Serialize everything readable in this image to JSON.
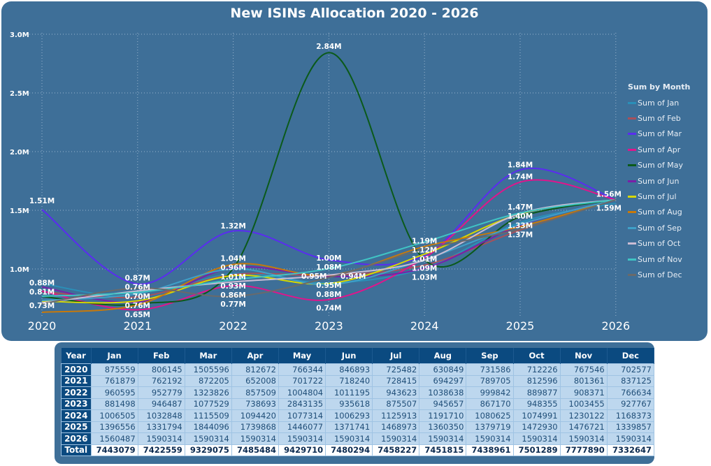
{
  "chart_data": {
    "type": "line",
    "title": "New ISINs Allocation 2020 - 2026",
    "x": [
      2020,
      2021,
      2022,
      2023,
      2024,
      2025,
      2026
    ],
    "y_ticks": [
      "1.0M",
      "1.5M",
      "2.0M",
      "2.5M",
      "3.0M"
    ],
    "ylim": [
      600000,
      3000000
    ],
    "grid": true,
    "legend": {
      "title": "Sum by Month",
      "placement": "right"
    },
    "series": [
      {
        "name": "Sum of Jan",
        "color": "#2a8fb8",
        "values": [
          875559,
          761879,
          960595,
          881498,
          1006505,
          1396556,
          1560487
        ]
      },
      {
        "name": "Sum of Feb",
        "color": "#a8505a",
        "values": [
          806145,
          762192,
          952779,
          946487,
          1032848,
          1331794,
          1590314
        ]
      },
      {
        "name": "Sum of Mar",
        "color": "#5a2cf0",
        "values": [
          1505596,
          872205,
          1323826,
          1077529,
          1115509,
          1844096,
          1590314
        ]
      },
      {
        "name": "Sum of Apr",
        "color": "#e0158c",
        "values": [
          812672,
          652008,
          857509,
          738693,
          1094420,
          1739868,
          1590314
        ]
      },
      {
        "name": "Sum of May",
        "color": "#0b5a1a",
        "values": [
          766344,
          701722,
          1004804,
          2843135,
          1077314,
          1446077,
          1590314
        ]
      },
      {
        "name": "Sum of Jun",
        "color": "#7a1fa8",
        "values": [
          846893,
          718240,
          1011195,
          935618,
          1006293,
          1371741,
          1590314
        ]
      },
      {
        "name": "Sum of Jul",
        "color": "#d8d800",
        "values": [
          725482,
          728415,
          943623,
          875507,
          1125913,
          1468973,
          1590314
        ]
      },
      {
        "name": "Sum of Aug",
        "color": "#c8790a",
        "values": [
          630849,
          694297,
          1038638,
          945657,
          1191710,
          1360350,
          1590314
        ]
      },
      {
        "name": "Sum of Sep",
        "color": "#3fa0c8",
        "values": [
          731586,
          789705,
          999842,
          867170,
          1080625,
          1379719,
          1590314
        ]
      },
      {
        "name": "Sum of Oct",
        "color": "#cbbcd4",
        "values": [
          712226,
          812596,
          889877,
          948355,
          1074991,
          1472930,
          1590314
        ]
      },
      {
        "name": "Sum of Nov",
        "color": "#40c4c4",
        "values": [
          767546,
          801361,
          908371,
          1003455,
          1230122,
          1476721,
          1590314
        ]
      },
      {
        "name": "Sum of Dec",
        "color": "#6a6a6a",
        "values": [
          702577,
          837125,
          766634,
          927767,
          1168373,
          1339857,
          1590314
        ]
      }
    ],
    "data_labels": [
      {
        "x": 2020,
        "text": "1.51M",
        "v": 1.51
      },
      {
        "x": 2020,
        "text": "0.88M",
        "v": 0.88
      },
      {
        "x": 2020,
        "text": "0.81M",
        "v": 0.81
      },
      {
        "x": 2020,
        "text": "0.73M",
        "v": 0.69
      },
      {
        "x": 2021,
        "text": "0.87M",
        "v": 0.91
      },
      {
        "x": 2021,
        "text": "0.76M",
        "v": 0.78
      },
      {
        "x": 2021,
        "text": "0.70M",
        "v": 0.72
      },
      {
        "x": 2021,
        "text": "0.76M",
        "v": 0.65
      },
      {
        "x": 2021,
        "text": "0.65M",
        "v": 0.6
      },
      {
        "x": 2022,
        "text": "1.32M",
        "v": 1.37
      },
      {
        "x": 2022,
        "text": "1.04M",
        "v": 1.07
      },
      {
        "x": 2022,
        "text": "0.96M",
        "v": 0.99
      },
      {
        "x": 2022,
        "text": "1.01M",
        "v": 0.93
      },
      {
        "x": 2022,
        "text": "0.93M",
        "v": 0.88
      },
      {
        "x": 2022,
        "text": "0.86M",
        "v": 0.8
      },
      {
        "x": 2022,
        "text": "0.77M",
        "v": 0.71
      },
      {
        "x": 2023,
        "text": "2.84M",
        "v": 2.9
      },
      {
        "x": 2023,
        "text": "1.00M",
        "v": 1.05
      },
      {
        "x": 2023,
        "text": "1.08M",
        "v": 1.0
      },
      {
        "x": 2023,
        "text": "0.95M",
        "v": 0.88
      },
      {
        "x": 2023,
        "text": "0.88M",
        "v": 0.82
      },
      {
        "x": 2023,
        "text": "0.74M",
        "v": 0.67
      },
      {
        "x": 2023.05,
        "text": "0.95M",
        "v": 0.95,
        "dx": -28
      },
      {
        "x": 2023.05,
        "text": "0.94M",
        "v": 0.94,
        "dx": 28
      },
      {
        "x": 2024,
        "text": "1.19M",
        "v": 1.23
      },
      {
        "x": 2024,
        "text": "1.12M",
        "v": 1.16
      },
      {
        "x": 2024,
        "text": "1.01M",
        "v": 1.05
      },
      {
        "x": 2024,
        "text": "1.09M",
        "v": 1.02
      },
      {
        "x": 2024,
        "text": "1.03M",
        "v": 0.97
      },
      {
        "x": 2025,
        "text": "1.84M",
        "v": 1.89
      },
      {
        "x": 2025,
        "text": "1.74M",
        "v": 1.79
      },
      {
        "x": 2025,
        "text": "1.47M",
        "v": 1.52
      },
      {
        "x": 2025,
        "text": "1.40M",
        "v": 1.45
      },
      {
        "x": 2025,
        "text": "1.33M",
        "v": 1.38
      },
      {
        "x": 2025,
        "text": "1.37M",
        "v": 1.3
      },
      {
        "x": 2026,
        "text": "1.56M",
        "v": 1.64,
        "dx": -10
      },
      {
        "x": 2026,
        "text": "1.59M",
        "v": 1.52,
        "dx": -10
      }
    ]
  },
  "table": {
    "headers": [
      "Year",
      "Jan",
      "Feb",
      "Mar",
      "Apr",
      "May",
      "Jun",
      "Jul",
      "Aug",
      "Sep",
      "Oct",
      "Nov",
      "Dec"
    ],
    "rows": [
      [
        "2020",
        "875559",
        "806145",
        "1505596",
        "812672",
        "766344",
        "846893",
        "725482",
        "630849",
        "731586",
        "712226",
        "767546",
        "702577"
      ],
      [
        "2021",
        "761879",
        "762192",
        "872205",
        "652008",
        "701722",
        "718240",
        "728415",
        "694297",
        "789705",
        "812596",
        "801361",
        "837125"
      ],
      [
        "2022",
        "960595",
        "952779",
        "1323826",
        "857509",
        "1004804",
        "1011195",
        "943623",
        "1038638",
        "999842",
        "889877",
        "908371",
        "766634"
      ],
      [
        "2023",
        "881498",
        "946487",
        "1077529",
        "738693",
        "2843135",
        "935618",
        "875507",
        "945657",
        "867170",
        "948355",
        "1003455",
        "927767"
      ],
      [
        "2024",
        "1006505",
        "1032848",
        "1115509",
        "1094420",
        "1077314",
        "1006293",
        "1125913",
        "1191710",
        "1080625",
        "1074991",
        "1230122",
        "1168373"
      ],
      [
        "2025",
        "1396556",
        "1331794",
        "1844096",
        "1739868",
        "1446077",
        "1371741",
        "1468973",
        "1360350",
        "1379719",
        "1472930",
        "1476721",
        "1339857"
      ],
      [
        "2026",
        "1560487",
        "1590314",
        "1590314",
        "1590314",
        "1590314",
        "1590314",
        "1590314",
        "1590314",
        "1590314",
        "1590314",
        "1590314",
        "1590314"
      ]
    ],
    "total": [
      "Total",
      "7443079",
      "7422559",
      "9329075",
      "7485484",
      "9429710",
      "7480294",
      "7458227",
      "7451815",
      "7438961",
      "7501289",
      "7777890",
      "7332647"
    ]
  }
}
